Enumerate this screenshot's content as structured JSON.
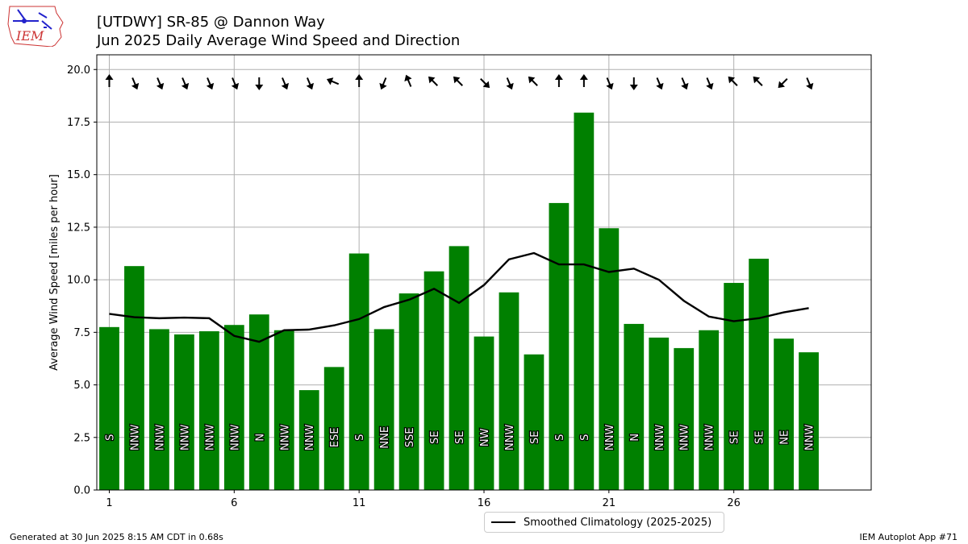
{
  "title_line1": "[UTDWY] SR-85 @ Dannon Way",
  "title_line2": "Jun 2025 Daily Average Wind Speed and Direction",
  "footer_left": "Generated at 30 Jun 2025 8:15 AM CDT in 0.68s",
  "footer_right": "IEM Autoplot App #71",
  "logo_text": "IEM",
  "colors": {
    "bar": "#008000",
    "climo": "#000000",
    "grid": "#b0b0b0",
    "logo": "#cc3333"
  },
  "chart_data": {
    "type": "bar",
    "ylabel": "Average Wind Speed [miles per hour]",
    "ylim": [
      0,
      20.7
    ],
    "xlim": [
      0.5,
      31.5
    ],
    "yticks": [
      "0.0",
      "2.5",
      "5.0",
      "7.5",
      "10.0",
      "12.5",
      "15.0",
      "17.5",
      "20.0"
    ],
    "xticks": [
      "1",
      "6",
      "11",
      "16",
      "21",
      "26"
    ],
    "grid": true,
    "legend_position": "bottom-center",
    "days": [
      1,
      2,
      3,
      4,
      5,
      6,
      7,
      8,
      9,
      10,
      11,
      12,
      13,
      14,
      15,
      16,
      17,
      18,
      19,
      20,
      21,
      22,
      23,
      24,
      25,
      26,
      27,
      28,
      29
    ],
    "values": [
      7.75,
      10.65,
      7.65,
      7.4,
      7.55,
      7.85,
      8.35,
      7.6,
      4.75,
      5.85,
      11.25,
      7.65,
      9.35,
      10.4,
      11.6,
      7.3,
      9.4,
      6.45,
      13.65,
      17.95,
      12.45,
      7.9,
      7.25,
      6.75,
      7.6,
      9.85,
      11.0,
      7.2,
      6.55
    ],
    "directions": [
      "S",
      "NNW",
      "NNW",
      "NNW",
      "NNW",
      "NNW",
      "N",
      "NNW",
      "NNW",
      "ESE",
      "S",
      "NNE",
      "SSE",
      "SE",
      "SE",
      "NW",
      "NNW",
      "SE",
      "S",
      "S",
      "NNW",
      "N",
      "NNW",
      "NNW",
      "NNW",
      "SE",
      "SE",
      "NE",
      "NNW"
    ],
    "series": [
      {
        "name": "Smoothed Climatology (2025-2025)",
        "values": [
          8.38,
          8.22,
          8.17,
          8.2,
          8.17,
          7.33,
          7.05,
          7.6,
          7.63,
          7.83,
          8.13,
          8.7,
          9.05,
          9.57,
          8.9,
          9.75,
          10.97,
          11.27,
          10.73,
          10.73,
          10.37,
          10.53,
          10.0,
          9.0,
          8.25,
          8.03,
          8.17,
          8.45,
          8.65
        ]
      }
    ]
  }
}
